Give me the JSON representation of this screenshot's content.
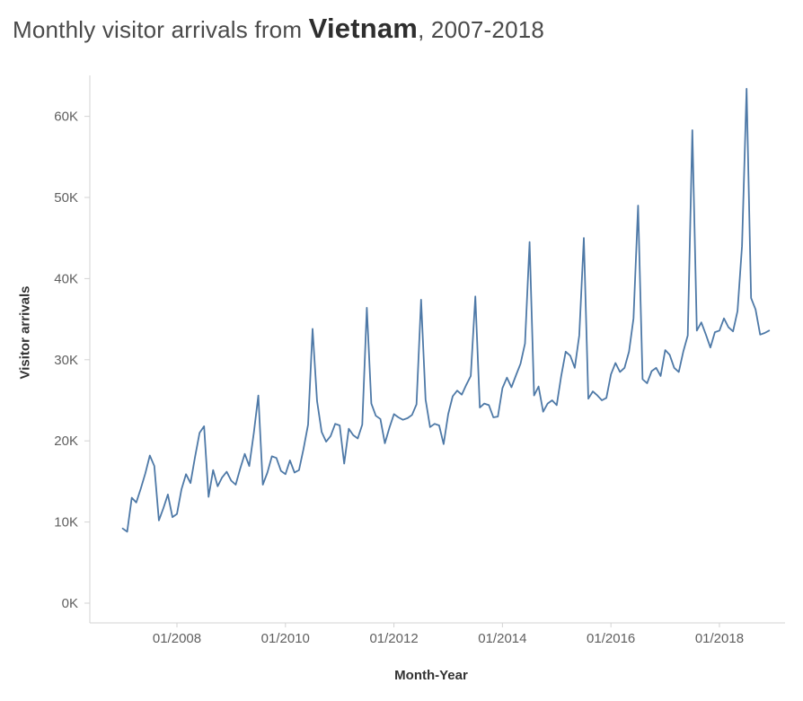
{
  "title": {
    "prefix": "Monthly visitor arrivals from ",
    "highlight": "Vietnam",
    "suffix": ", 2007-2018"
  },
  "axes": {
    "y_title": "Visitor arrivals",
    "x_title": "Month-Year"
  },
  "chart_data": {
    "type": "line",
    "title": "Monthly visitor arrivals from Vietnam, 2007-2018",
    "xlabel": "Month-Year",
    "ylabel": "Visitor arrivals",
    "x_start": "01/2007",
    "x_end": "12/2018",
    "x_tick_labels": [
      {
        "label": "01/2008",
        "month_index": 12
      },
      {
        "label": "01/2010",
        "month_index": 36
      },
      {
        "label": "01/2012",
        "month_index": 60
      },
      {
        "label": "01/2014",
        "month_index": 84
      },
      {
        "label": "01/2016",
        "month_index": 108
      },
      {
        "label": "01/2018",
        "month_index": 132
      }
    ],
    "y_tick_labels": [
      "0K",
      "10K",
      "20K",
      "30K",
      "40K",
      "50K",
      "60K"
    ],
    "ylim_thousands": [
      0,
      65
    ],
    "grid": false,
    "legend": "none",
    "line_color": "#4e79a7",
    "axis_color": "#d3d3d3",
    "tick_label_color": "#5f5f5f",
    "series": [
      {
        "name": "Visitor arrivals",
        "unit": "thousands",
        "values": [
          9.2,
          8.8,
          13.0,
          12.4,
          14.1,
          16.0,
          18.2,
          16.9,
          10.2,
          11.7,
          13.4,
          10.6,
          11.0,
          14.0,
          15.9,
          14.8,
          18.0,
          21.0,
          21.8,
          13.1,
          16.4,
          14.4,
          15.5,
          16.2,
          15.1,
          14.6,
          16.6,
          18.4,
          16.9,
          21.0,
          25.6,
          14.6,
          16.1,
          18.1,
          17.9,
          16.3,
          15.9,
          17.6,
          16.1,
          16.4,
          19.0,
          22.0,
          33.8,
          24.9,
          21.1,
          19.9,
          20.6,
          22.1,
          21.9,
          17.2,
          21.5,
          20.7,
          20.3,
          22.0,
          36.4,
          24.6,
          23.1,
          22.7,
          19.7,
          21.6,
          23.3,
          22.9,
          22.6,
          22.8,
          23.2,
          24.5,
          37.4,
          25.1,
          21.7,
          22.1,
          21.9,
          19.6,
          23.3,
          25.5,
          26.2,
          25.7,
          26.9,
          28.0,
          37.8,
          24.1,
          24.6,
          24.4,
          22.9,
          23.0,
          26.5,
          27.8,
          26.6,
          28.1,
          29.5,
          32.0,
          44.5,
          25.6,
          26.7,
          23.6,
          24.6,
          25.0,
          24.4,
          28.0,
          31.0,
          30.5,
          29.0,
          33.0,
          45.0,
          25.2,
          26.1,
          25.6,
          25.0,
          25.3,
          28.2,
          29.6,
          28.5,
          29.0,
          31.0,
          35.1,
          49.0,
          27.6,
          27.1,
          28.6,
          29.0,
          28.0,
          31.2,
          30.6,
          29.0,
          28.5,
          31.0,
          33.0,
          58.3,
          33.6,
          34.6,
          33.1,
          31.5,
          33.4,
          33.6,
          35.1,
          34.0,
          33.5,
          36.0,
          44.0,
          63.4,
          37.6,
          36.2,
          33.1,
          33.3,
          33.6
        ]
      }
    ]
  }
}
